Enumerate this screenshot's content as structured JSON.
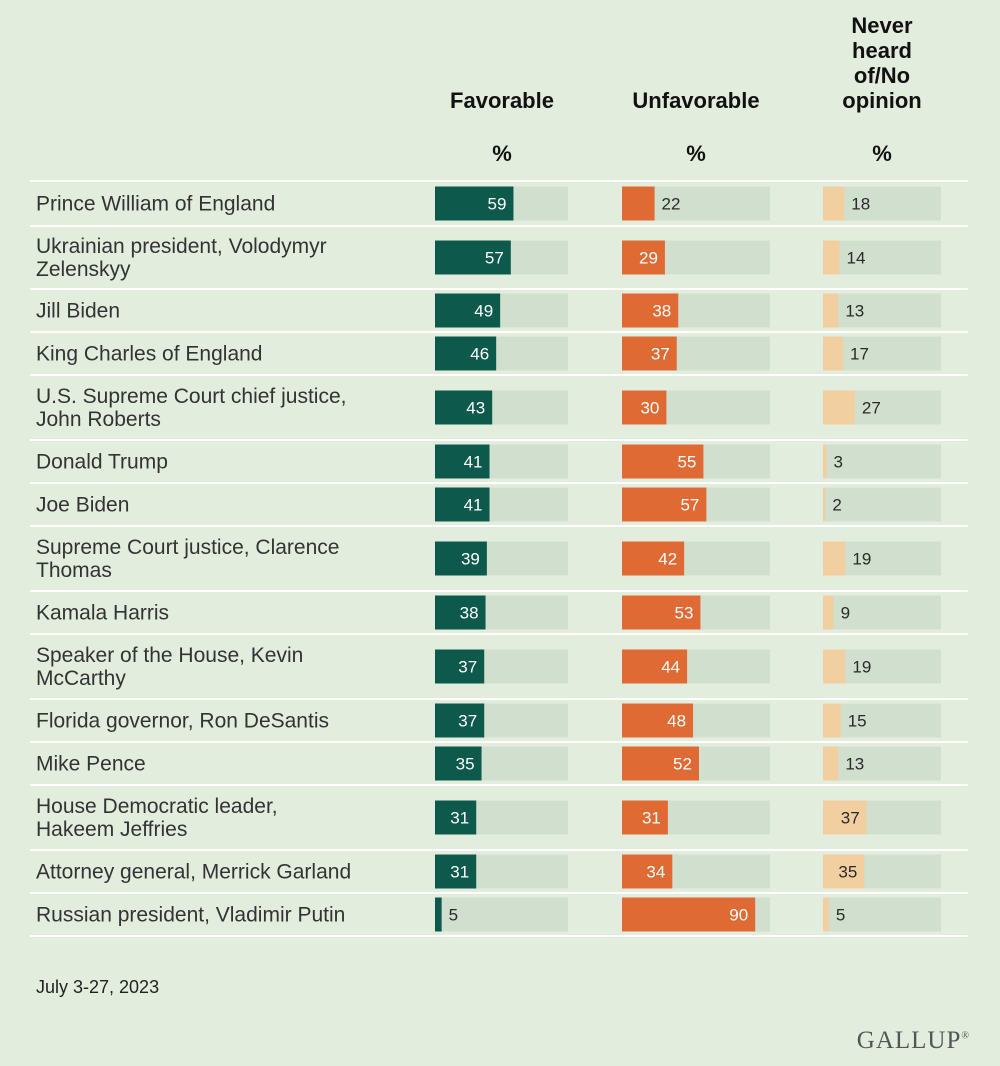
{
  "colors": {
    "background": "#e3eddd",
    "track": "#d1dfcf",
    "favorable": "#0d5a4c",
    "unfavorable": "#df6a33",
    "no_opinion": "#f2cfa0",
    "divider": "#ffffff"
  },
  "chart_data": {
    "type": "bar",
    "orientation": "horizontal",
    "unit": "%",
    "columns": [
      {
        "key": "favorable",
        "title_lines": [
          "Favorable"
        ],
        "unit_label": "%"
      },
      {
        "key": "unfavorable",
        "title_lines": [
          "Unfavorable"
        ],
        "unit_label": "%"
      },
      {
        "key": "no_opinion",
        "title_lines": [
          "Never",
          "heard",
          "of/No",
          "opinion"
        ],
        "unit_label": "%"
      }
    ],
    "rows": [
      {
        "label_lines": [
          "Prince William of England"
        ],
        "favorable": 59,
        "unfavorable": 22,
        "no_opinion": 18
      },
      {
        "label_lines": [
          "Ukrainian president, Volodymyr",
          "Zelenskyy"
        ],
        "favorable": 57,
        "unfavorable": 29,
        "no_opinion": 14
      },
      {
        "label_lines": [
          "Jill Biden"
        ],
        "favorable": 49,
        "unfavorable": 38,
        "no_opinion": 13
      },
      {
        "label_lines": [
          "King Charles of England"
        ],
        "favorable": 46,
        "unfavorable": 37,
        "no_opinion": 17
      },
      {
        "label_lines": [
          "U.S. Supreme Court chief justice,",
          "John Roberts"
        ],
        "favorable": 43,
        "unfavorable": 30,
        "no_opinion": 27
      },
      {
        "label_lines": [
          "Donald Trump"
        ],
        "favorable": 41,
        "unfavorable": 55,
        "no_opinion": 3
      },
      {
        "label_lines": [
          "Joe Biden"
        ],
        "favorable": 41,
        "unfavorable": 57,
        "no_opinion": 2
      },
      {
        "label_lines": [
          "Supreme Court justice, Clarence",
          "Thomas"
        ],
        "favorable": 39,
        "unfavorable": 42,
        "no_opinion": 19
      },
      {
        "label_lines": [
          "Kamala Harris"
        ],
        "favorable": 38,
        "unfavorable": 53,
        "no_opinion": 9
      },
      {
        "label_lines": [
          "Speaker of the House, Kevin",
          "McCarthy"
        ],
        "favorable": 37,
        "unfavorable": 44,
        "no_opinion": 19
      },
      {
        "label_lines": [
          "Florida governor, Ron DeSantis"
        ],
        "favorable": 37,
        "unfavorable": 48,
        "no_opinion": 15
      },
      {
        "label_lines": [
          "Mike Pence"
        ],
        "favorable": 35,
        "unfavorable": 52,
        "no_opinion": 13
      },
      {
        "label_lines": [
          "House Democratic leader,",
          "Hakeem Jeffries"
        ],
        "favorable": 31,
        "unfavorable": 31,
        "no_opinion": 37
      },
      {
        "label_lines": [
          "Attorney general, Merrick Garland"
        ],
        "favorable": 31,
        "unfavorable": 34,
        "no_opinion": 35
      },
      {
        "label_lines": [
          "Russian president, Vladimir Putin"
        ],
        "favorable": 5,
        "unfavorable": 90,
        "no_opinion": 5
      }
    ]
  },
  "footer": {
    "date": "July 3-27, 2023",
    "source_logo": "GALLUP"
  }
}
